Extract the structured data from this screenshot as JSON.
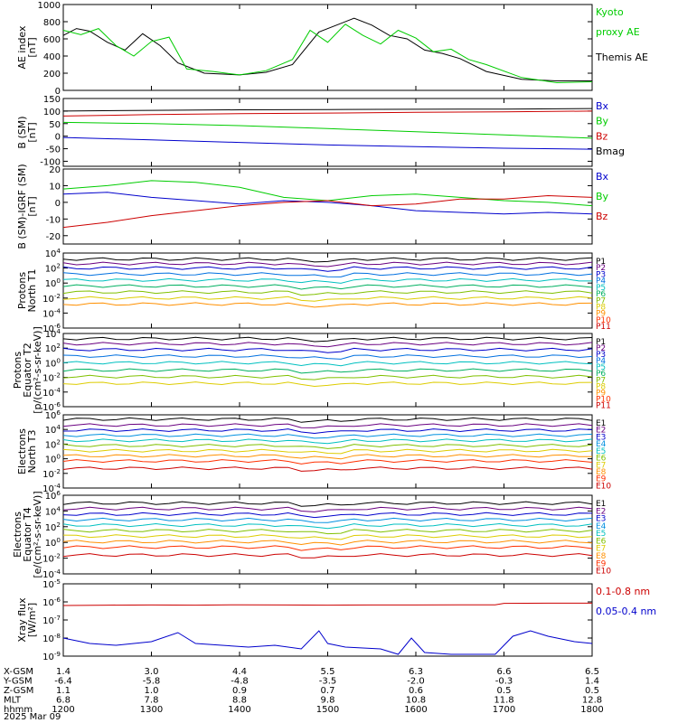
{
  "date_label": "2025 Mar 09",
  "colors": {
    "black": "#000000",
    "green": "#00cc00",
    "red": "#cc0000",
    "blue": "#0000cc"
  },
  "ephemeris": {
    "row_labels": [
      "X-GSM",
      "Y-GSM",
      "Z-GSM",
      "MLT",
      "hhmm"
    ],
    "columns": [
      {
        "X": "1.4",
        "Y": "-6.4",
        "Z": "1.1",
        "MLT": "6.8",
        "hhmm": "1200"
      },
      {
        "X": "3.0",
        "Y": "-5.8",
        "Z": "1.0",
        "MLT": "7.8",
        "hhmm": "1300"
      },
      {
        "X": "4.4",
        "Y": "-4.8",
        "Z": "0.9",
        "MLT": "8.8",
        "hhmm": "1400"
      },
      {
        "X": "5.5",
        "Y": "-3.5",
        "Z": "0.7",
        "MLT": "9.8",
        "hhmm": "1500"
      },
      {
        "X": "6.3",
        "Y": "-2.0",
        "Z": "0.6",
        "MLT": "10.8",
        "hhmm": "1600"
      },
      {
        "X": "6.6",
        "Y": "-0.3",
        "Z": "0.5",
        "MLT": "11.8",
        "hhmm": "1700"
      },
      {
        "X": "6.5",
        "Y": "1.4",
        "Z": "0.5",
        "MLT": "12.8",
        "hhmm": "1800"
      }
    ]
  },
  "chart_data": [
    {
      "type": "line",
      "ylabel": [
        "AE index",
        "[nT]"
      ],
      "ylim": [
        0,
        1000
      ],
      "scale": "linear",
      "yticks": [
        "0",
        "200",
        "400",
        "600",
        "800",
        "1000"
      ],
      "legend": [
        {
          "text": "Kyoto",
          "color": "green"
        },
        {
          "text": "proxy AE",
          "color": "green"
        },
        {
          "text": "Themis AE",
          "color": "black"
        }
      ],
      "series": [
        {
          "name": "Themis AE",
          "color": "black",
          "x": [
            0,
            0.15,
            0.3,
            0.5,
            0.7,
            0.9,
            1.1,
            1.3,
            1.6,
            2.0,
            2.3,
            2.6,
            2.9,
            3.3,
            3.5,
            3.7,
            3.9,
            4.1,
            4.3,
            4.5,
            4.8,
            5.2,
            5.6,
            6.0
          ],
          "y": [
            640,
            720,
            690,
            560,
            470,
            660,
            520,
            320,
            200,
            180,
            210,
            300,
            680,
            840,
            760,
            640,
            600,
            470,
            430,
            370,
            220,
            130,
            110,
            110
          ]
        },
        {
          "name": "Kyoto proxy AE",
          "color": "green",
          "x": [
            0,
            0.2,
            0.4,
            0.6,
            0.8,
            1.0,
            1.2,
            1.4,
            1.7,
            2.0,
            2.3,
            2.6,
            2.8,
            3.0,
            3.2,
            3.4,
            3.6,
            3.8,
            4.0,
            4.2,
            4.4,
            4.6,
            4.8,
            5.2,
            5.6,
            6.0
          ],
          "y": [
            700,
            650,
            720,
            520,
            400,
            570,
            620,
            250,
            220,
            180,
            230,
            360,
            700,
            560,
            770,
            640,
            540,
            700,
            610,
            450,
            480,
            360,
            300,
            150,
            90,
            100
          ]
        }
      ]
    },
    {
      "type": "line",
      "ylabel": [
        "B (SM)",
        "[nT]"
      ],
      "ylim": [
        -120,
        150
      ],
      "scale": "linear",
      "yticks": [
        "-100",
        "-50",
        "0",
        "50",
        "100",
        "150"
      ],
      "legend": [
        {
          "text": "Bx",
          "color": "blue"
        },
        {
          "text": "By",
          "color": "green"
        },
        {
          "text": "Bz",
          "color": "red"
        },
        {
          "text": "Bmag",
          "color": "black"
        }
      ],
      "series": [
        {
          "name": "Bmag",
          "color": "black",
          "x": [
            0,
            1,
            2,
            3,
            4,
            5,
            6
          ],
          "y": [
            100,
            103,
            105,
            106,
            107,
            108,
            110
          ]
        },
        {
          "name": "Bz",
          "color": "red",
          "x": [
            0,
            1,
            2,
            3,
            4,
            5,
            6
          ],
          "y": [
            80,
            86,
            90,
            92,
            95,
            97,
            100
          ]
        },
        {
          "name": "By",
          "color": "green",
          "x": [
            0,
            1,
            2,
            3,
            4,
            5,
            6
          ],
          "y": [
            55,
            50,
            42,
            30,
            18,
            5,
            -8
          ]
        },
        {
          "name": "Bx",
          "color": "blue",
          "x": [
            0,
            1,
            2,
            3,
            4,
            5,
            6
          ],
          "y": [
            -5,
            -15,
            -25,
            -35,
            -42,
            -48,
            -52
          ]
        }
      ]
    },
    {
      "type": "line",
      "ylabel": [
        "B (SM)-IGRF (SM)",
        "[nT]"
      ],
      "ylim": [
        -25,
        20
      ],
      "scale": "linear",
      "yticks": [
        "-20",
        "-10",
        "0",
        "10",
        "20"
      ],
      "legend": [
        {
          "text": "Bx",
          "color": "blue"
        },
        {
          "text": "By",
          "color": "green"
        },
        {
          "text": "Bz",
          "color": "red"
        }
      ],
      "series": [
        {
          "name": "Bx",
          "color": "blue",
          "x": [
            0,
            0.5,
            1,
            1.5,
            2,
            2.5,
            3,
            3.5,
            4,
            4.5,
            5,
            5.5,
            6
          ],
          "y": [
            5,
            6,
            3,
            1,
            -1,
            1,
            0,
            -2,
            -5,
            -6,
            -7,
            -6,
            -7
          ]
        },
        {
          "name": "By",
          "color": "green",
          "x": [
            0,
            0.5,
            1,
            1.5,
            2,
            2.5,
            3,
            3.5,
            4,
            4.5,
            5,
            5.5,
            6
          ],
          "y": [
            8,
            10,
            13,
            12,
            9,
            3,
            1,
            4,
            5,
            3,
            1,
            0,
            -2
          ]
        },
        {
          "name": "Bz",
          "color": "red",
          "x": [
            0,
            0.5,
            1,
            1.5,
            2,
            2.5,
            3,
            3.5,
            4,
            4.5,
            5,
            5.5,
            6
          ],
          "y": [
            -15,
            -12,
            -8,
            -5,
            -2,
            0,
            1,
            -2,
            -1,
            2,
            2,
            4,
            3
          ]
        }
      ]
    },
    {
      "type": "line",
      "ylabel": [
        "Protons",
        "North T1"
      ],
      "ylim": [
        -6,
        4
      ],
      "scale": "log",
      "yticks": [
        "10^-6",
        "10^-4",
        "10^-2",
        "10^0",
        "10^2",
        "10^4"
      ],
      "legend": [
        {
          "text": "P1",
          "color": "black"
        },
        {
          "text": "P2",
          "color": "#6a0080"
        },
        {
          "text": "P3",
          "color": "blue"
        },
        {
          "text": "P4",
          "color": "#0070e0"
        },
        {
          "text": "P5",
          "color": "#00c0c0"
        },
        {
          "text": "P6",
          "color": "#00b060"
        },
        {
          "text": "P7",
          "color": "#80c000"
        },
        {
          "text": "P8",
          "color": "#ddcc00"
        },
        {
          "text": "P9",
          "color": "#ff9000"
        },
        {
          "text": "P10",
          "color": "#ff3000"
        },
        {
          "text": "P11",
          "color": "#cc0000"
        }
      ],
      "series": [
        {
          "name": "P1",
          "color": "black",
          "level": 3.2
        },
        {
          "name": "P2",
          "color": "#6a0080",
          "level": 2.6
        },
        {
          "name": "P3",
          "color": "blue",
          "level": 2.0
        },
        {
          "name": "P4",
          "color": "#0070e0",
          "level": 1.2
        },
        {
          "name": "P5",
          "color": "#00c0c0",
          "level": 0.4
        },
        {
          "name": "P6",
          "color": "#00b060",
          "level": -0.4
        },
        {
          "name": "P7",
          "color": "#80c000",
          "level": -1.2
        },
        {
          "name": "P8",
          "color": "#ddcc00",
          "level": -2.0
        },
        {
          "name": "P9",
          "color": "#ff9000",
          "level": -2.8
        }
      ]
    },
    {
      "type": "line",
      "ylabel": [
        "Protons",
        "Equator T2",
        "[p/(cm^2-s-sr-keV)]"
      ],
      "ylim": [
        -6,
        4
      ],
      "scale": "log",
      "yticks": [
        "10^-6",
        "10^-4",
        "10^-2",
        "10^0",
        "10^2",
        "10^4"
      ],
      "legend": [
        {
          "text": "P1",
          "color": "black"
        },
        {
          "text": "P2",
          "color": "#6a0080"
        },
        {
          "text": "P3",
          "color": "blue"
        },
        {
          "text": "P4",
          "color": "#0070e0"
        },
        {
          "text": "P5",
          "color": "#00c0c0"
        },
        {
          "text": "P6",
          "color": "#00b060"
        },
        {
          "text": "P7",
          "color": "#80c000"
        },
        {
          "text": "P8",
          "color": "#ddcc00"
        },
        {
          "text": "P9",
          "color": "#ff9000"
        },
        {
          "text": "P10",
          "color": "#ff3000"
        },
        {
          "text": "P11",
          "color": "#cc0000"
        }
      ],
      "series": [
        {
          "name": "P1",
          "color": "black",
          "level": 3.3
        },
        {
          "name": "P2",
          "color": "#6a0080",
          "level": 2.6
        },
        {
          "name": "P3",
          "color": "blue",
          "level": 1.8
        },
        {
          "name": "P4",
          "color": "#0070e0",
          "level": 0.9
        },
        {
          "name": "P5",
          "color": "#00c0c0",
          "level": 0.0
        },
        {
          "name": "P6",
          "color": "#00b060",
          "level": -1.0
        },
        {
          "name": "P7",
          "color": "#80c000",
          "level": -1.9
        },
        {
          "name": "P8",
          "color": "#ddcc00",
          "level": -2.8
        }
      ]
    },
    {
      "type": "line",
      "ylabel": [
        "Electrons",
        "North T3"
      ],
      "ylim": [
        -4,
        6
      ],
      "scale": "log",
      "yticks": [
        "10^-4",
        "10^-2",
        "10^0",
        "10^2",
        "10^4",
        "10^6"
      ],
      "legend": [
        {
          "text": "E1",
          "color": "black"
        },
        {
          "text": "E2",
          "color": "#6a0080"
        },
        {
          "text": "E3",
          "color": "blue"
        },
        {
          "text": "E4",
          "color": "#0090e0"
        },
        {
          "text": "E5",
          "color": "#00c0c0"
        },
        {
          "text": "E6",
          "color": "#80c000"
        },
        {
          "text": "E7",
          "color": "#ddcc00"
        },
        {
          "text": "E8",
          "color": "#ff9000"
        },
        {
          "text": "E9",
          "color": "#ff3000"
        },
        {
          "text": "E10",
          "color": "#cc0000"
        }
      ],
      "series": [
        {
          "name": "E1",
          "color": "black",
          "level": 5.4
        },
        {
          "name": "E2",
          "color": "#6a0080",
          "level": 4.6
        },
        {
          "name": "E3",
          "color": "blue",
          "level": 3.9
        },
        {
          "name": "E4",
          "color": "#0090e0",
          "level": 3.2
        },
        {
          "name": "E5",
          "color": "#00c0c0",
          "level": 2.5
        },
        {
          "name": "E6",
          "color": "#80c000",
          "level": 1.8
        },
        {
          "name": "E7",
          "color": "#ddcc00",
          "level": 1.1
        },
        {
          "name": "E8",
          "color": "#ff9000",
          "level": 0.4
        },
        {
          "name": "E9",
          "color": "#ff3000",
          "level": -0.3
        },
        {
          "name": "E10",
          "color": "#cc0000",
          "level": -1.3
        }
      ]
    },
    {
      "type": "line",
      "ylabel": [
        "Electrons",
        "Equator T4",
        "[e/(cm^2-s-sr-keV)]"
      ],
      "ylim": [
        -4,
        6
      ],
      "scale": "log",
      "yticks": [
        "10^-4",
        "10^-2",
        "10^0",
        "10^2",
        "10^4",
        "10^6"
      ],
      "legend": [
        {
          "text": "E1",
          "color": "black"
        },
        {
          "text": "E2",
          "color": "#6a0080"
        },
        {
          "text": "E3",
          "color": "blue"
        },
        {
          "text": "E4",
          "color": "#0090e0"
        },
        {
          "text": "E5",
          "color": "#00c0c0"
        },
        {
          "text": "E6",
          "color": "#80c000"
        },
        {
          "text": "E7",
          "color": "#ddcc00"
        },
        {
          "text": "E8",
          "color": "#ff9000"
        },
        {
          "text": "E9",
          "color": "#ff3000"
        },
        {
          "text": "E10",
          "color": "#cc0000"
        }
      ],
      "series": [
        {
          "name": "E1",
          "color": "black",
          "level": 5.0
        },
        {
          "name": "E2",
          "color": "#6a0080",
          "level": 4.3
        },
        {
          "name": "E3",
          "color": "blue",
          "level": 3.6
        },
        {
          "name": "E4",
          "color": "#0090e0",
          "level": 2.9
        },
        {
          "name": "E5",
          "color": "#00c0c0",
          "level": 2.2
        },
        {
          "name": "E6",
          "color": "#80c000",
          "level": 1.5
        },
        {
          "name": "E7",
          "color": "#ddcc00",
          "level": 0.8
        },
        {
          "name": "E8",
          "color": "#ff9000",
          "level": 0.1
        },
        {
          "name": "E9",
          "color": "#ff3000",
          "level": -0.6
        },
        {
          "name": "E10",
          "color": "#cc0000",
          "level": -1.6
        }
      ]
    },
    {
      "type": "line",
      "ylabel": [
        "Xray flux",
        "[W/m^2]"
      ],
      "ylim": [
        -9,
        -5
      ],
      "scale": "log",
      "yticks": [
        "10^-9",
        "10^-8",
        "10^-7",
        "10^-6",
        "10^-5"
      ],
      "legend": [
        {
          "text": "0.1-0.8 nm",
          "color": "red"
        },
        {
          "text": "0.05-0.4 nm",
          "color": "blue"
        }
      ],
      "series": [
        {
          "name": "0.1-0.8 nm",
          "color": "red",
          "x": [
            0,
            0.5,
            1,
            1.5,
            2,
            2.5,
            3,
            3.5,
            4,
            4.5,
            4.9,
            5.0,
            5.5,
            6
          ],
          "y": [
            -6.2,
            -6.18,
            -6.17,
            -6.18,
            -6.16,
            -6.17,
            -6.18,
            -6.17,
            -6.17,
            -6.16,
            -6.16,
            -6.08,
            -6.07,
            -6.07
          ]
        },
        {
          "name": "0.05-0.4 nm",
          "color": "blue",
          "x": [
            0,
            0.3,
            0.6,
            1,
            1.3,
            1.5,
            1.8,
            2.1,
            2.4,
            2.7,
            2.9,
            3.0,
            3.2,
            3.6,
            3.8,
            3.95,
            4.1,
            4.4,
            4.9,
            5.1,
            5.3,
            5.5,
            5.8,
            6
          ],
          "y": [
            -8.0,
            -8.3,
            -8.4,
            -8.2,
            -7.7,
            -8.3,
            -8.4,
            -8.5,
            -8.4,
            -8.6,
            -7.6,
            -8.3,
            -8.5,
            -8.6,
            -8.9,
            -8.0,
            -8.8,
            -8.9,
            -8.9,
            -7.9,
            -7.6,
            -7.9,
            -8.2,
            -8.3
          ]
        }
      ]
    }
  ]
}
